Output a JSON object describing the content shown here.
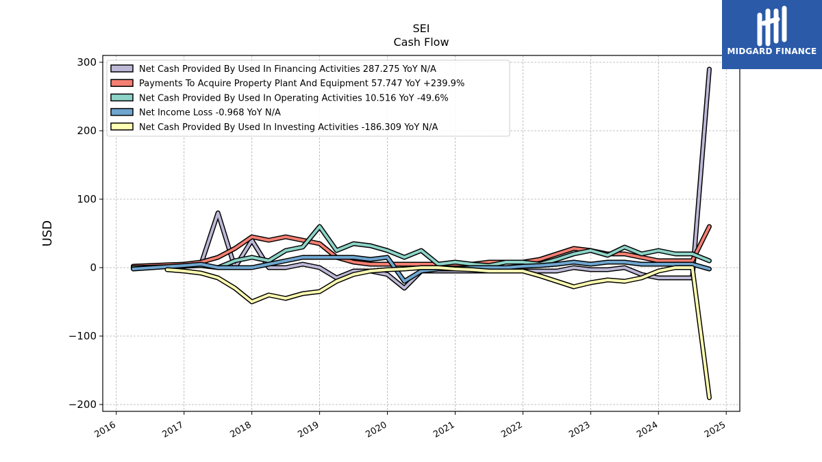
{
  "chart_data": {
    "type": "line",
    "title": "SEI",
    "subtitle": "Cash Flow",
    "xlabel": "",
    "ylabel": "USD",
    "xlim": [
      2015.8,
      2025.2
    ],
    "ylim": [
      -210,
      310
    ],
    "yticks": [
      300,
      200,
      100,
      0,
      -100,
      -200
    ],
    "ytick_labels": [
      "300",
      "200",
      "100",
      "0",
      "−100",
      "−200"
    ],
    "xticks": [
      2016,
      2017,
      2018,
      2019,
      2020,
      2021,
      2022,
      2023,
      2024,
      2025
    ],
    "xtick_labels": [
      "2016",
      "2017",
      "2018",
      "2019",
      "2020",
      "2021",
      "2022",
      "2023",
      "2024",
      "2025"
    ],
    "grid": true,
    "legend_position": "top-left",
    "series": [
      {
        "name": "Net Cash Provided By Used In Financing Activities",
        "legend": "Net Cash Provided By Used In Financing Activities  287.275 YoY N/A",
        "color": "#bcb8d6",
        "x": [
          2016.25,
          2017.0,
          2017.25,
          2017.5,
          2017.75,
          2018.0,
          2018.25,
          2018.5,
          2018.75,
          2019.0,
          2019.25,
          2019.5,
          2019.75,
          2020.0,
          2020.25,
          2020.5,
          2020.75,
          2021.0,
          2021.25,
          2021.5,
          2021.75,
          2022.0,
          2022.25,
          2022.5,
          2022.75,
          2023.0,
          2023.25,
          2023.5,
          2023.75,
          2024.0,
          2024.25,
          2024.5,
          2024.75
        ],
        "values": [
          2,
          3,
          5,
          80,
          0,
          40,
          0,
          0,
          5,
          0,
          -15,
          -5,
          -5,
          -10,
          -30,
          -5,
          -5,
          -5,
          -5,
          -5,
          -5,
          -5,
          -5,
          -5,
          0,
          -3,
          -3,
          0,
          -10,
          -15,
          -15,
          -15,
          290
        ]
      },
      {
        "name": "Payments To Acquire Property Plant And Equipment",
        "legend": "Payments To Acquire Property Plant And Equipment  57.747 YoY +239.9%",
        "color": "#f47f72",
        "x": [
          2016.25,
          2017.0,
          2017.25,
          2017.5,
          2017.75,
          2018.0,
          2018.25,
          2018.5,
          2018.75,
          2019.0,
          2019.25,
          2019.5,
          2019.75,
          2020.0,
          2020.25,
          2020.5,
          2020.75,
          2021.0,
          2021.25,
          2021.5,
          2021.75,
          2022.0,
          2022.25,
          2022.5,
          2022.75,
          2023.0,
          2023.25,
          2023.5,
          2023.75,
          2024.0,
          2024.25,
          2024.5,
          2024.75
        ],
        "values": [
          2,
          5,
          8,
          15,
          28,
          45,
          40,
          45,
          40,
          35,
          15,
          8,
          5,
          5,
          5,
          5,
          5,
          5,
          5,
          8,
          8,
          8,
          12,
          20,
          28,
          25,
          20,
          20,
          15,
          10,
          10,
          10,
          60
        ]
      },
      {
        "name": "Net Cash Provided By Used In Operating Activities",
        "legend": "Net Cash Provided By Used In Operating Activities  10.516 YoY -49.6%",
        "color": "#8dd3c7",
        "x": [
          2016.25,
          2017.0,
          2017.25,
          2017.5,
          2017.75,
          2018.0,
          2018.25,
          2018.5,
          2018.75,
          2019.0,
          2019.25,
          2019.5,
          2019.75,
          2020.0,
          2020.25,
          2020.5,
          2020.75,
          2021.0,
          2021.25,
          2021.5,
          2021.75,
          2022.0,
          2022.25,
          2022.5,
          2022.75,
          2023.0,
          2023.25,
          2023.5,
          2023.75,
          2024.0,
          2024.25,
          2024.5,
          2024.75
        ],
        "values": [
          0,
          2,
          3,
          0,
          10,
          15,
          10,
          25,
          30,
          60,
          25,
          35,
          32,
          25,
          15,
          25,
          5,
          8,
          5,
          3,
          8,
          8,
          5,
          12,
          20,
          25,
          18,
          30,
          20,
          25,
          20,
          20,
          10
        ]
      },
      {
        "name": "Net Income Loss",
        "legend": "Net Income Loss  -0.968 YoY N/A",
        "color": "#6fa6cf",
        "x": [
          2016.25,
          2017.0,
          2017.25,
          2017.5,
          2017.75,
          2018.0,
          2018.25,
          2018.5,
          2018.75,
          2019.0,
          2019.25,
          2019.5,
          2019.75,
          2020.0,
          2020.25,
          2020.5,
          2020.75,
          2021.0,
          2021.25,
          2021.5,
          2021.75,
          2022.0,
          2022.25,
          2022.5,
          2022.75,
          2023.0,
          2023.25,
          2023.5,
          2023.75,
          2024.0,
          2024.25,
          2024.5,
          2024.75
        ],
        "values": [
          -2,
          3,
          5,
          0,
          0,
          0,
          5,
          10,
          15,
          15,
          15,
          15,
          12,
          15,
          -20,
          -5,
          -2,
          -2,
          0,
          0,
          0,
          2,
          3,
          5,
          8,
          5,
          8,
          8,
          5,
          5,
          5,
          5,
          -2
        ]
      },
      {
        "name": "Net Cash Provided By Used In Investing Activities",
        "legend": "Net Cash Provided By Used In Investing Activities  -186.309 YoY N/A",
        "color": "#ffffb3",
        "x": [
          2016.75,
          2017.0,
          2017.25,
          2017.5,
          2017.75,
          2018.0,
          2018.25,
          2018.5,
          2018.75,
          2019.0,
          2019.25,
          2019.5,
          2019.75,
          2020.0,
          2020.25,
          2020.5,
          2020.75,
          2021.0,
          2021.25,
          2021.5,
          2021.75,
          2022.0,
          2022.25,
          2022.5,
          2022.75,
          2023.0,
          2023.25,
          2023.5,
          2023.75,
          2024.0,
          2024.25,
          2024.5,
          2024.75
        ],
        "values": [
          -3,
          -5,
          -8,
          -15,
          -30,
          -50,
          -40,
          -45,
          -38,
          -35,
          -20,
          -10,
          -5,
          -3,
          -2,
          0,
          0,
          -2,
          -3,
          -5,
          -5,
          -5,
          -12,
          -20,
          -28,
          -22,
          -18,
          -20,
          -15,
          -5,
          0,
          0,
          -190
        ]
      }
    ]
  },
  "brand": {
    "name": "MIDGARD FINANCE",
    "color": "#2a5aa8"
  }
}
